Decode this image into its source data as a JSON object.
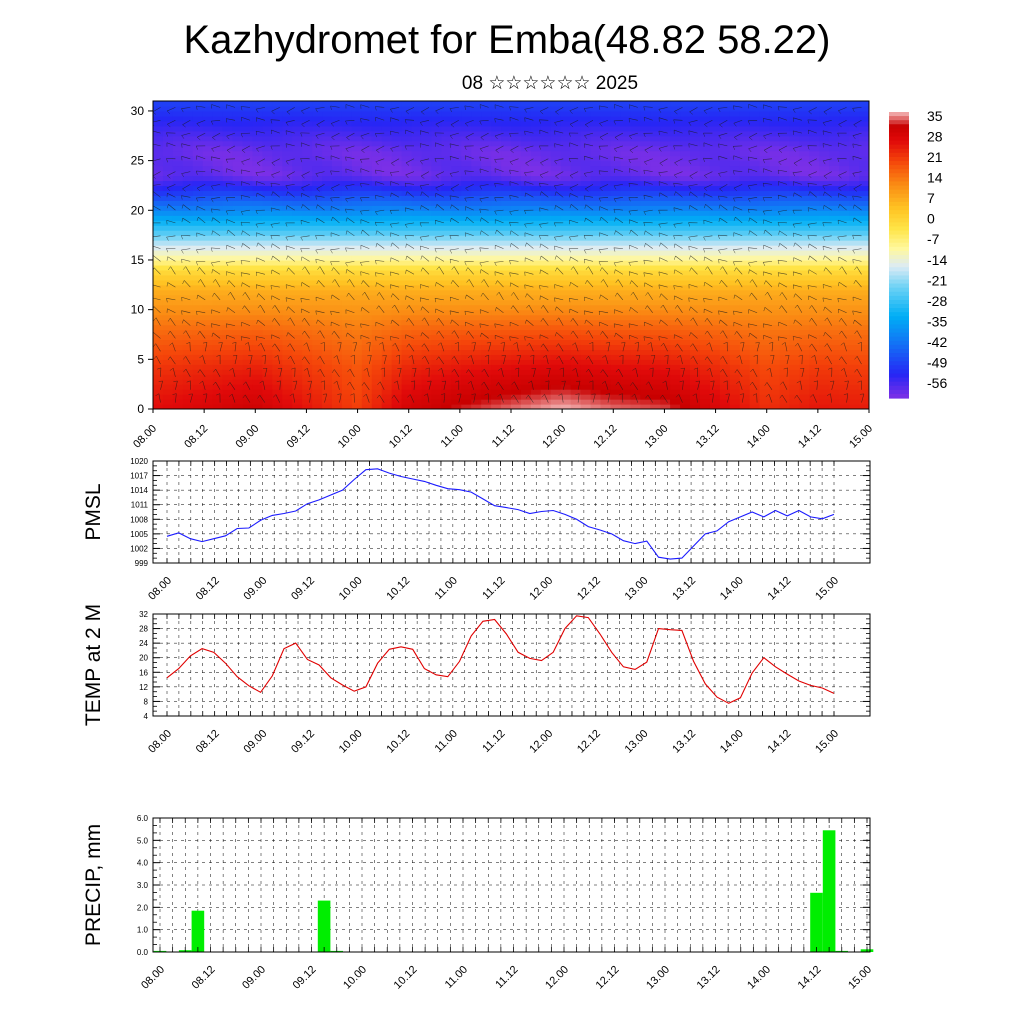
{
  "title": "Kazhydromet for Emba(48.82 58.22)",
  "subtitle": "08 ☆☆☆☆☆☆ 2025",
  "colors": {
    "pmsl_line": "#1a1aff",
    "temp_line": "#e00000",
    "precip_bar": "#00ee00"
  },
  "chart_data": [
    {
      "type": "heatmap",
      "title": "",
      "xlabel": "",
      "ylabel": "",
      "x_tick_labels": [
        "08.00",
        "08.12",
        "09.00",
        "09.12",
        "10.00",
        "10.12",
        "11.00",
        "11.12",
        "12.00",
        "12.12",
        "13.00",
        "13.12",
        "14.00",
        "14.12",
        "15.00"
      ],
      "y_ticks": [
        0,
        5,
        10,
        15,
        20,
        25,
        30
      ],
      "ylim": [
        0,
        31
      ],
      "colorbar_labels": [
        "35",
        "28",
        "21",
        "14",
        "7",
        "0",
        "-7",
        "-14",
        "-21",
        "-28",
        "-35",
        "-42",
        "-49",
        "-56"
      ],
      "colorbar_range": [
        -60,
        38
      ],
      "temperature_profile": [
        {
          "z": 0,
          "t": 26
        },
        {
          "z": 4,
          "t": 22
        },
        {
          "z": 8,
          "t": 16
        },
        {
          "z": 10,
          "t": 12
        },
        {
          "z": 12,
          "t": 8
        },
        {
          "z": 14,
          "t": 0
        },
        {
          "z": 15,
          "t": -8
        },
        {
          "z": 16.5,
          "t": -16
        },
        {
          "z": 18,
          "t": -26
        },
        {
          "z": 20,
          "t": -38
        },
        {
          "z": 22,
          "t": -50
        },
        {
          "z": 23.5,
          "t": -58
        },
        {
          "z": 26,
          "t": -58
        },
        {
          "z": 28,
          "t": -54
        },
        {
          "z": 31,
          "t": -48
        }
      ],
      "surface_warm_anomaly": [
        {
          "x": 0,
          "dt": 2
        },
        {
          "x": 2,
          "dt": 6
        },
        {
          "x": 4,
          "dt": -4
        },
        {
          "x": 5,
          "dt": 5
        },
        {
          "x": 6,
          "dt": 8
        },
        {
          "x": 7,
          "dt": 10
        },
        {
          "x": 8,
          "dt": 12
        },
        {
          "x": 9,
          "dt": 10
        },
        {
          "x": 10,
          "dt": 9
        },
        {
          "x": 11,
          "dt": 4
        },
        {
          "x": 12,
          "dt": -2
        },
        {
          "x": 13,
          "dt": 1
        },
        {
          "x": 14,
          "dt": 0
        }
      ],
      "grid": false,
      "legend": "right colorbar"
    },
    {
      "type": "line",
      "title": "",
      "ylabel": "PMSL",
      "x_tick_labels": [
        "08.00",
        "08.12",
        "09.00",
        "09.12",
        "10.00",
        "10.12",
        "11.00",
        "11.12",
        "12.00",
        "12.12",
        "13.00",
        "13.12",
        "14.00",
        "14.12",
        "15.00"
      ],
      "y_tick_labels": [
        "1020",
        "1017",
        "1014",
        "1011",
        "1008",
        "1005",
        "1002",
        "999"
      ],
      "ylim": [
        999,
        1020
      ],
      "x_step_hours": 3,
      "series": [
        {
          "values": [
            1004.5,
            1005.2,
            1004,
            1003.4,
            1004,
            1004.6,
            1006.1,
            1006.2,
            1007.8,
            1008.8,
            1009.2,
            1009.7,
            1011.2,
            1012,
            1013,
            1014,
            1016.2,
            1018.2,
            1018.4,
            1017.5,
            1016.8,
            1016.3,
            1015.8,
            1015,
            1014.3,
            1014.1,
            1013.6,
            1012.2,
            1010.8,
            1010.4,
            1010,
            1009.2,
            1009.6,
            1009.8,
            1009,
            1008,
            1006.5,
            1005.8,
            1005,
            1003.6,
            1003,
            1003.5,
            1000.2,
            999.8,
            1000,
            1002.5,
            1005,
            1005.6,
            1007.5,
            1008.5,
            1009.5,
            1008.5,
            1009.8,
            1008.7,
            1009.8,
            1008.5,
            1008.1,
            1009
          ]
        }
      ],
      "grid": true
    },
    {
      "type": "line",
      "title": "",
      "ylabel": "TEMP at 2 M",
      "x_tick_labels": [
        "08.00",
        "08.12",
        "09.00",
        "09.12",
        "10.00",
        "10.12",
        "11.00",
        "11.12",
        "12.00",
        "12.12",
        "13.00",
        "13.12",
        "14.00",
        "14.12",
        "15.00"
      ],
      "y_tick_labels": [
        "32",
        "28",
        "24",
        "20",
        "16",
        "12",
        "8",
        "4"
      ],
      "ylim": [
        4,
        32
      ],
      "x_step_hours": 3,
      "series": [
        {
          "values": [
            14.5,
            17,
            20.5,
            22.5,
            21.5,
            18.5,
            14.8,
            12.3,
            10.5,
            15,
            22.5,
            24,
            19.5,
            18,
            14.5,
            12.5,
            10.8,
            12,
            18.5,
            22.3,
            23,
            22.3,
            17,
            15.3,
            14.8,
            19,
            26,
            30,
            30.5,
            26.5,
            21.5,
            19.8,
            19.2,
            21.5,
            28,
            31.5,
            31,
            26.5,
            21.5,
            17.5,
            16.8,
            18.8,
            28,
            27.7,
            27.5,
            19,
            12.8,
            9.2,
            7.5,
            9,
            15.8,
            20,
            17.5,
            15.5,
            13.6,
            12.4,
            11.7,
            10.2
          ]
        }
      ],
      "grid": true
    },
    {
      "type": "bar",
      "title": "",
      "ylabel": "PRECIP, mm",
      "x_tick_labels": [
        "08.00",
        "08.12",
        "09.00",
        "09.12",
        "10.00",
        "10.12",
        "11.00",
        "11.12",
        "12.00",
        "12.12",
        "13.00",
        "13.12",
        "14.00",
        "14.12",
        "15.00"
      ],
      "y_tick_labels": [
        "6.0",
        "5.0",
        "4.0",
        "3.0",
        "2.0",
        "1.0",
        "0.0"
      ],
      "ylim": [
        0,
        6
      ],
      "x_step_hours": 3,
      "values": [
        0.05,
        0,
        0.08,
        1.85,
        0,
        0,
        0,
        0,
        0,
        0,
        0,
        0,
        0,
        2.3,
        0.05,
        0,
        0,
        0,
        0,
        0,
        0,
        0,
        0,
        0,
        0,
        0,
        0,
        0,
        0,
        0,
        0,
        0,
        0,
        0,
        0,
        0,
        0,
        0,
        0,
        0,
        0,
        0,
        0,
        0,
        0,
        0,
        0,
        0,
        0,
        0,
        0,
        0,
        2.65,
        5.45,
        0.05,
        0,
        0.12
      ],
      "grid": true
    }
  ]
}
